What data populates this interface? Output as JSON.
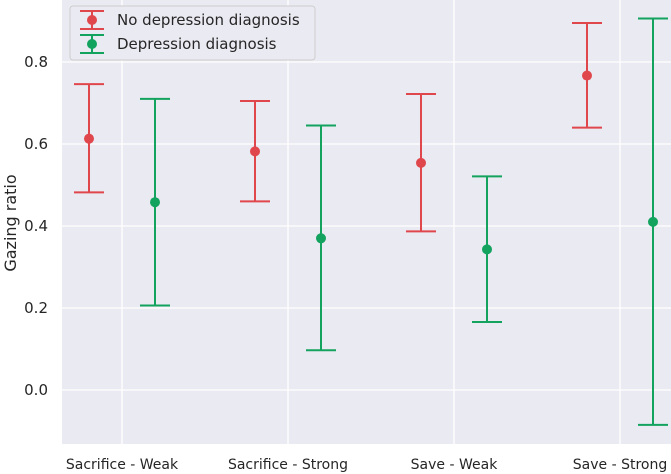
{
  "chart_data": {
    "type": "errorbar",
    "categories": [
      "Sacrifice - Weak",
      "Sacrifice - Strong",
      "Save - Weak",
      "Save - Strong"
    ],
    "ylabel": "Gazing ratio",
    "xlabel": "",
    "ylim": [
      -0.13,
      0.94
    ],
    "yticks": [
      0.0,
      0.2,
      0.4,
      0.6,
      0.8
    ],
    "ytick_labels": [
      "0.0",
      "0.2",
      "0.4",
      "0.6",
      "0.8"
    ],
    "grid": true,
    "legend_position": "top-left",
    "series": [
      {
        "name": "No depression diagnosis",
        "color": "#e0474c",
        "values": [
          0.613,
          0.582,
          0.554,
          0.767
        ],
        "lower": [
          0.482,
          0.46,
          0.387,
          0.64
        ],
        "upper": [
          0.746,
          0.705,
          0.722,
          0.895
        ]
      },
      {
        "name": "Depression diagnosis",
        "color": "#13a35e",
        "values": [
          0.458,
          0.37,
          0.343,
          0.41
        ],
        "lower": [
          0.206,
          0.097,
          0.166,
          -0.085
        ],
        "upper": [
          0.71,
          0.645,
          0.521,
          0.906
        ]
      }
    ]
  }
}
